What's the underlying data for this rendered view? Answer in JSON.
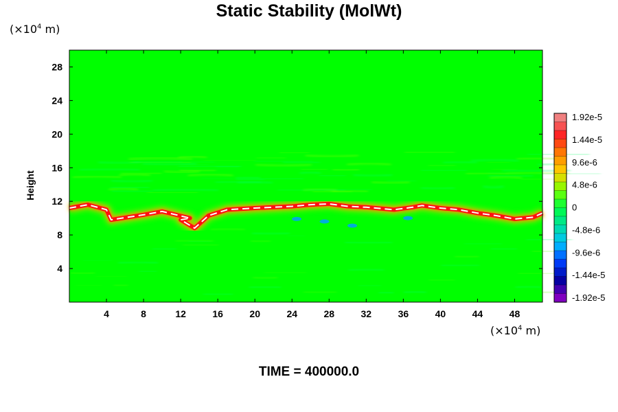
{
  "chart_data": {
    "type": "heatmap",
    "title": "Static Stability (MolWt)",
    "ylabel": "Height",
    "y_unit": "(×10^4 m)",
    "x_unit": "(×10^4 m)",
    "xlim": [
      0,
      51
    ],
    "ylim": [
      0,
      30
    ],
    "x_ticks": [
      "4",
      "8",
      "12",
      "16",
      "20",
      "24",
      "28",
      "32",
      "36",
      "40",
      "44",
      "48"
    ],
    "y_ticks": [
      "4",
      "8",
      "12",
      "16",
      "20",
      "24",
      "28"
    ],
    "colorbar": {
      "labels": [
        "1.92e-5",
        "1.44e-5",
        "9.6e-6",
        "4.8e-6",
        "0",
        "-4.8e-6",
        "-9.6e-6",
        "-1.44e-5",
        "-1.92e-5"
      ],
      "range": [
        -1.92e-05,
        1.92e-05
      ],
      "colors": [
        "#f08080",
        "#ff2020",
        "#ff8000",
        "#ffd000",
        "#80ff00",
        "#00ff40",
        "#00e0a0",
        "#00c0ff",
        "#0040ff",
        "#0000a0",
        "#8000c0"
      ]
    },
    "background_value": 0,
    "band": {
      "description_note": "",
      "center_height": [
        11.2,
        11.6,
        11.0,
        9.8,
        10.4,
        10.8,
        10.0,
        9.8,
        8.8,
        10.3,
        11.0,
        11.2,
        11.3,
        11.4,
        11.6,
        11.7,
        11.4,
        11.3,
        11.0,
        11.3,
        11.5,
        11.2,
        11.0,
        10.6,
        10.3,
        9.9,
        10.1,
        10.6
      ],
      "x": [
        0,
        2,
        4,
        4.5,
        8,
        10,
        13,
        12,
        13.5,
        15,
        17,
        20,
        22,
        24,
        26,
        28,
        30,
        32,
        35,
        37,
        38,
        40,
        42,
        44,
        46,
        48,
        50,
        51
      ],
      "peak_value": 1.92e-05
    },
    "time_label": "TIME = 400000.0"
  }
}
